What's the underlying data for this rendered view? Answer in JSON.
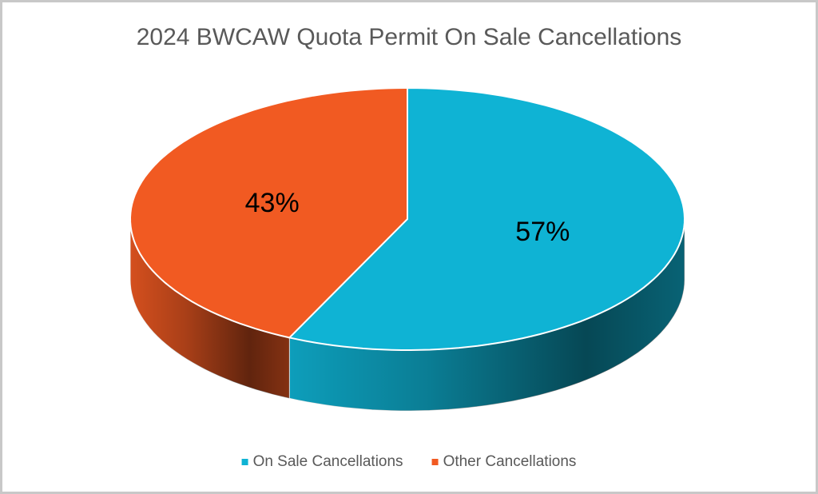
{
  "chart_data": {
    "type": "pie",
    "title": "2024 BWCAW Quota Permit On Sale Cancellations",
    "categories": [
      "On Sale Cancellations",
      "Other Cancellations"
    ],
    "values": [
      57,
      43
    ],
    "value_labels": [
      "57%",
      "43%"
    ],
    "colors": [
      "#0fb3d4",
      "#f15a22"
    ],
    "legend": "bottom"
  }
}
